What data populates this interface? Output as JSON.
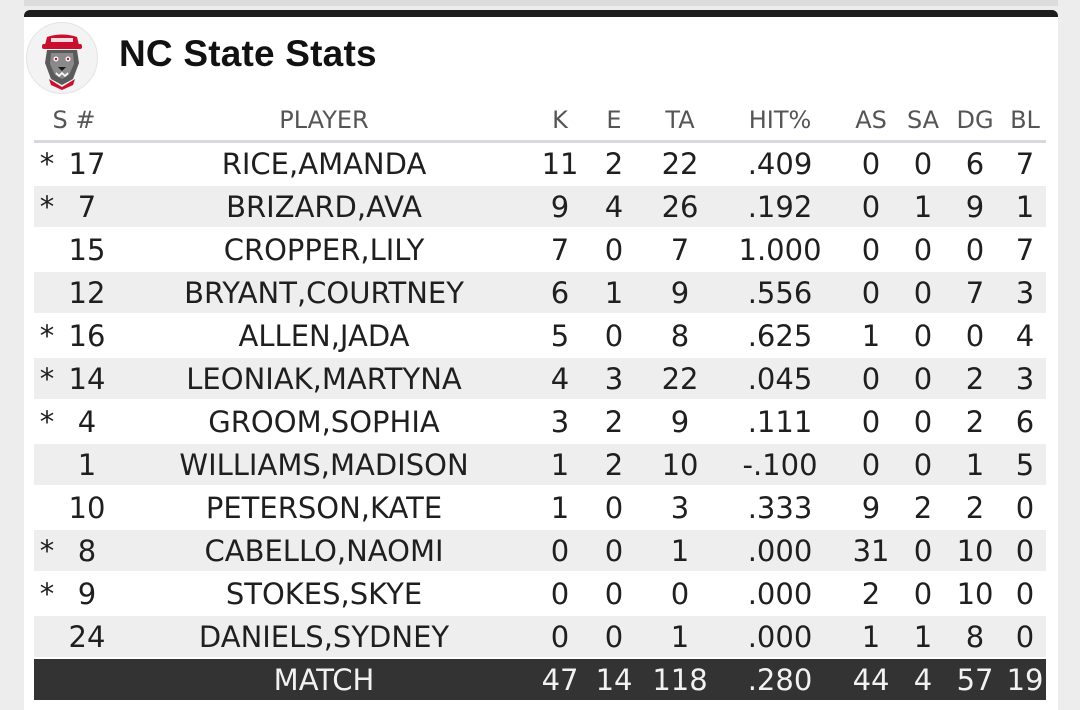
{
  "team_title": "NC State Stats",
  "logo_icon": "nc-state-wolf-logo",
  "colors": {
    "header_bar": "#1d1d1d",
    "stripe_row": "#eeeeee",
    "total_row": "#333333",
    "logo_red": "#c8102e"
  },
  "columns": {
    "s_num": "S #",
    "player": "PLAYER",
    "k": "K",
    "e": "E",
    "ta": "TA",
    "hit_pct": "HIT%",
    "as": "AS",
    "sa": "SA",
    "dg": "DG",
    "bl": "BL"
  },
  "rows": [
    {
      "s": "*",
      "num": "17",
      "player": "RICE,AMANDA",
      "k": "11",
      "e": "2",
      "ta": "22",
      "hit": ".409",
      "as": "0",
      "sa": "0",
      "dg": "6",
      "bl": "7"
    },
    {
      "s": "*",
      "num": "7",
      "player": "BRIZARD,AVA",
      "k": "9",
      "e": "4",
      "ta": "26",
      "hit": ".192",
      "as": "0",
      "sa": "1",
      "dg": "9",
      "bl": "1"
    },
    {
      "s": "",
      "num": "15",
      "player": "CROPPER,LILY",
      "k": "7",
      "e": "0",
      "ta": "7",
      "hit": "1.000",
      "as": "0",
      "sa": "0",
      "dg": "0",
      "bl": "7"
    },
    {
      "s": "",
      "num": "12",
      "player": "BRYANT,COURTNEY",
      "k": "6",
      "e": "1",
      "ta": "9",
      "hit": ".556",
      "as": "0",
      "sa": "0",
      "dg": "7",
      "bl": "3"
    },
    {
      "s": "*",
      "num": "16",
      "player": "ALLEN,JADA",
      "k": "5",
      "e": "0",
      "ta": "8",
      "hit": ".625",
      "as": "1",
      "sa": "0",
      "dg": "0",
      "bl": "4"
    },
    {
      "s": "*",
      "num": "14",
      "player": "LEONIAK,MARTYNA",
      "k": "4",
      "e": "3",
      "ta": "22",
      "hit": ".045",
      "as": "0",
      "sa": "0",
      "dg": "2",
      "bl": "3"
    },
    {
      "s": "*",
      "num": "4",
      "player": "GROOM,SOPHIA",
      "k": "3",
      "e": "2",
      "ta": "9",
      "hit": ".111",
      "as": "0",
      "sa": "0",
      "dg": "2",
      "bl": "6"
    },
    {
      "s": "",
      "num": "1",
      "player": "WILLIAMS,MADISON",
      "k": "1",
      "e": "2",
      "ta": "10",
      "hit": "-.100",
      "as": "0",
      "sa": "0",
      "dg": "1",
      "bl": "5"
    },
    {
      "s": "",
      "num": "10",
      "player": "PETERSON,KATE",
      "k": "1",
      "e": "0",
      "ta": "3",
      "hit": ".333",
      "as": "9",
      "sa": "2",
      "dg": "2",
      "bl": "0"
    },
    {
      "s": "*",
      "num": "8",
      "player": "CABELLO,NAOMI",
      "k": "0",
      "e": "0",
      "ta": "1",
      "hit": ".000",
      "as": "31",
      "sa": "0",
      "dg": "10",
      "bl": "0"
    },
    {
      "s": "*",
      "num": "9",
      "player": "STOKES,SKYE",
      "k": "0",
      "e": "0",
      "ta": "0",
      "hit": ".000",
      "as": "2",
      "sa": "0",
      "dg": "10",
      "bl": "0"
    },
    {
      "s": "",
      "num": "24",
      "player": "DANIELS,SYDNEY",
      "k": "0",
      "e": "0",
      "ta": "1",
      "hit": ".000",
      "as": "1",
      "sa": "1",
      "dg": "8",
      "bl": "0"
    }
  ],
  "totals": {
    "label": "MATCH",
    "k": "47",
    "e": "14",
    "ta": "118",
    "hit": ".280",
    "as": "44",
    "sa": "4",
    "dg": "57",
    "bl": "19"
  }
}
